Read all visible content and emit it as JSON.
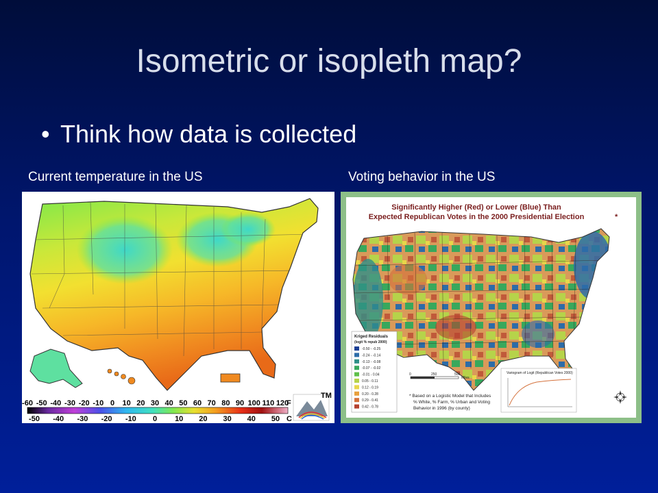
{
  "slide": {
    "title": "Isometric or isopleth map?",
    "bullet": "Think how data is collected",
    "bullet_symbol": "•"
  },
  "left_figure": {
    "caption": "Current temperature in the US",
    "scale_f_labels": [
      "-60",
      "-50",
      "-40",
      "-30",
      "-20",
      "-10",
      "0",
      "10",
      "20",
      "30",
      "40",
      "50",
      "60",
      "70",
      "80",
      "90",
      "100",
      "110",
      "120"
    ],
    "scale_f_unit": "F",
    "scale_c_labels": [
      "-50",
      "-40",
      "-30",
      "-20",
      "-10",
      "0",
      "10",
      "20",
      "30",
      "40",
      "50"
    ],
    "scale_c_unit": "C",
    "logo_mark": "TM"
  },
  "right_figure": {
    "caption": "Voting behavior in the US",
    "map_title_line1": "Significantly Higher (Red) or Lower (Blue) Than",
    "map_title_line2": "Expected Republican Votes in the 2000 Presidential Election",
    "map_title_mark": "*",
    "legend_title": "Kriged Residuals",
    "legend_subtitle": "(logit % repub 2000)",
    "legend_items": [
      {
        "label": "-0.50 - -0.25",
        "color": "#1c3f95"
      },
      {
        "label": "-0.24 - -0.14",
        "color": "#2d6ca8"
      },
      {
        "label": "-0.13 - -0.08",
        "color": "#2e8f88"
      },
      {
        "label": "-0.07 - -0.02",
        "color": "#38a85c"
      },
      {
        "label": "-0.01 - 0.04",
        "color": "#5fbf4a"
      },
      {
        "label": "0.05 - 0.11",
        "color": "#b6d34a"
      },
      {
        "label": "0.12 - 0.19",
        "color": "#e8d64a"
      },
      {
        "label": "0.20 - 0.28",
        "color": "#e8a03c"
      },
      {
        "label": "0.29 - 0.41",
        "color": "#d4703a"
      },
      {
        "label": "0.42 - 0.78",
        "color": "#b5402e"
      }
    ],
    "scale_bar_labels": [
      "0",
      "250",
      "500"
    ],
    "scale_bar_unit": "Miles",
    "footnote_lines": [
      "* Based on a Logistic Model that Includes",
      "% White, % Farm, % Urban and Voting",
      "Behavior in 1996 (by county)"
    ],
    "variogram_title": "Variogram of Logit (Republican Votes 2000)"
  }
}
